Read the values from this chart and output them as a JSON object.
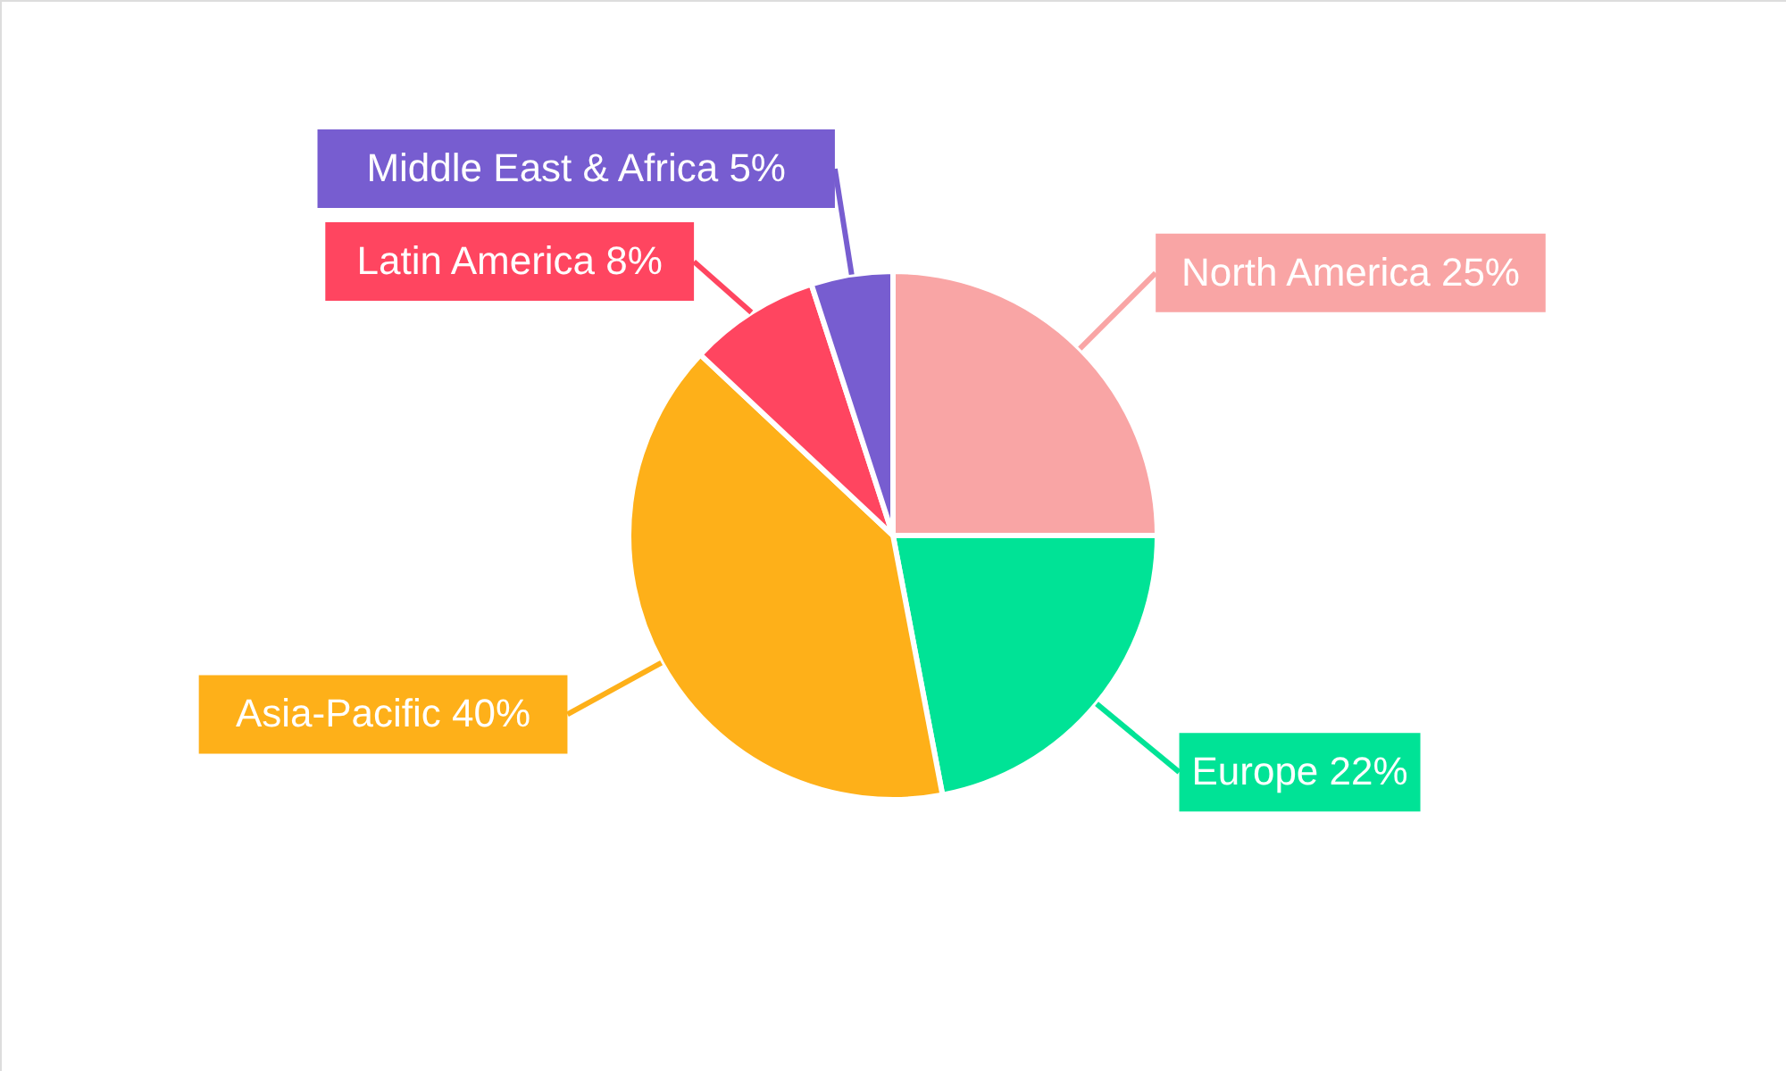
{
  "chart_data": {
    "type": "pie",
    "categories": [
      "North America",
      "Europe",
      "Asia-Pacific",
      "Latin America",
      "Middle East & Africa"
    ],
    "values": [
      25,
      22,
      40,
      8,
      5
    ],
    "value_labels": [
      "25%",
      "22%",
      "40%",
      "8%",
      "5%"
    ],
    "colors": [
      "#f9a5a5",
      "#00e396",
      "#feb019",
      "#ff4560",
      "#775dd0"
    ],
    "legend": false
  }
}
